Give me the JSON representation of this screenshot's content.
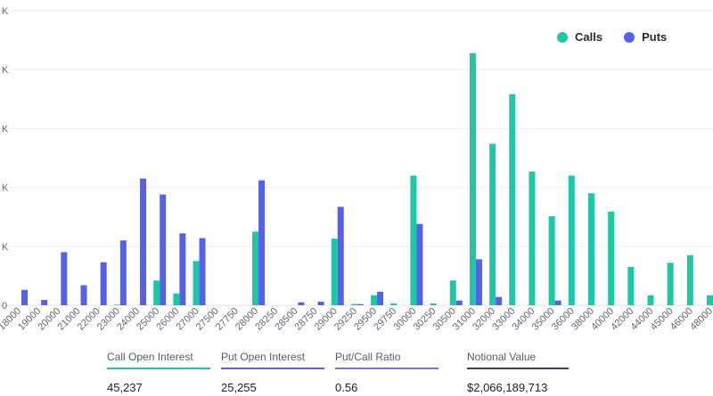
{
  "chart_data": {
    "type": "bar",
    "categories": [
      "18000",
      "19000",
      "20000",
      "21000",
      "22000",
      "23000",
      "24000",
      "25000",
      "26000",
      "27000",
      "27500",
      "27750",
      "28000",
      "28250",
      "28500",
      "28750",
      "29000",
      "29250",
      "29500",
      "29750",
      "30000",
      "30250",
      "30500",
      "31000",
      "32000",
      "33000",
      "34000",
      "35000",
      "36000",
      "38000",
      "40000",
      "42000",
      "44000",
      "45000",
      "46000",
      "48000"
    ],
    "series": [
      {
        "name": "Calls",
        "color": "#1ec8a6",
        "values": [
          0,
          0,
          0,
          0,
          0,
          10,
          0,
          420,
          200,
          750,
          0,
          0,
          1250,
          0,
          0,
          0,
          1130,
          20,
          170,
          30,
          2200,
          30,
          420,
          4280,
          2740,
          3580,
          2270,
          1510,
          2200,
          1900,
          1590,
          650,
          170,
          720,
          850,
          170
        ]
      },
      {
        "name": "Puts",
        "color": "#5562e8",
        "values": [
          260,
          90,
          900,
          340,
          730,
          1100,
          2150,
          1880,
          1220,
          1140,
          0,
          0,
          2120,
          0,
          50,
          60,
          1670,
          20,
          230,
          0,
          1380,
          0,
          80,
          780,
          140,
          0,
          0,
          80,
          0,
          0,
          0,
          0,
          0,
          0,
          0,
          0
        ]
      }
    ],
    "ylim": [
      0,
      5000
    ],
    "yticks": [
      0,
      1000,
      2000,
      3000,
      4000,
      5000
    ],
    "ytick_labels": [
      "0",
      "K",
      "K",
      "K",
      "K",
      "K"
    ],
    "grid": true,
    "legend_position": "top-right"
  },
  "legend": {
    "calls_label": "Calls",
    "puts_label": "Puts",
    "calls_color": "#1ec8a6",
    "puts_color": "#5562e8"
  },
  "stats": [
    {
      "label": "Call Open Interest",
      "value": "45,237",
      "color": "#1ec8a6"
    },
    {
      "label": "Put Open Interest",
      "value": "25,255",
      "color": "#5562e8"
    },
    {
      "label": "Put/Call Ratio",
      "value": "0.56",
      "color": "#7b6fdf"
    },
    {
      "label": "Notional Value",
      "value": "$2,066,189,713",
      "color": "#3b4255"
    }
  ]
}
